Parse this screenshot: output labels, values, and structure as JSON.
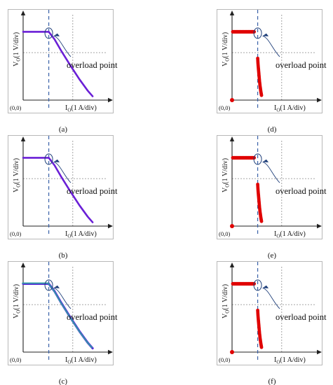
{
  "panels": [
    {
      "id": "a",
      "caption": "(a)",
      "col": 0,
      "row": 0,
      "style": "line",
      "colors": [
        "#6a1fd6"
      ],
      "ylabel_main": "V",
      "ylabel_sub": "O",
      "ylabel_unit": "(1 V/div)",
      "xlabel_main": "I",
      "xlabel_sub": "O",
      "xlabel_unit": "(1 A/div)",
      "origin": "(0,0)",
      "annotation": "overload point"
    },
    {
      "id": "b",
      "caption": "(b)",
      "col": 0,
      "row": 1,
      "style": "line",
      "colors": [
        "#6a1fd6"
      ],
      "ylabel_main": "V",
      "ylabel_sub": "O",
      "ylabel_unit": "(1 V/div)",
      "xlabel_main": "I",
      "xlabel_sub": "O",
      "xlabel_unit": "(1 A/div)",
      "origin": "(0,0)",
      "annotation": "overload point"
    },
    {
      "id": "c",
      "caption": "(c)",
      "col": 0,
      "row": 2,
      "style": "line",
      "colors": [
        "#2aa5a0",
        "#5a30d8"
      ],
      "ylabel_main": "V",
      "ylabel_sub": "O",
      "ylabel_unit": "(1 V/div)",
      "xlabel_main": "I",
      "xlabel_sub": "O",
      "xlabel_unit": "(1 A/div)",
      "origin": "(0,0)",
      "annotation": "overload point"
    },
    {
      "id": "d",
      "caption": "(d)",
      "col": 1,
      "row": 0,
      "style": "dots",
      "colors": [
        "#e00000"
      ],
      "ylabel_main": "V",
      "ylabel_sub": "O",
      "ylabel_unit": "(1 V/div)",
      "xlabel_main": "I",
      "xlabel_sub": "O",
      "xlabel_unit": "(1 A/div)",
      "origin": "(0,0)",
      "annotation": "overload point"
    },
    {
      "id": "e",
      "caption": "(e)",
      "col": 1,
      "row": 1,
      "style": "dots",
      "colors": [
        "#e00000"
      ],
      "ylabel_main": "V",
      "ylabel_sub": "O",
      "ylabel_unit": "(1 V/div)",
      "xlabel_main": "I",
      "xlabel_sub": "O",
      "xlabel_unit": "(1 A/div)",
      "origin": "(0,0)",
      "annotation": "overload point"
    },
    {
      "id": "f",
      "caption": "(f)",
      "col": 1,
      "row": 2,
      "style": "dots",
      "colors": [
        "#e00000"
      ],
      "ylabel_main": "V",
      "ylabel_sub": "O",
      "ylabel_unit": "(1 V/div)",
      "xlabel_main": "I",
      "xlabel_sub": "O",
      "xlabel_unit": "(1 A/div)",
      "origin": "(0,0)",
      "annotation": "overload point"
    }
  ],
  "chart_data": [
    {
      "type": "line",
      "panel": "a",
      "x": [
        0,
        1.55,
        1.9,
        2.3,
        2.8,
        3.4,
        3.9,
        4.2
      ],
      "y": [
        3.6,
        3.6,
        3.2,
        2.6,
        1.9,
        1.1,
        0.5,
        0.2
      ],
      "overload_x": 1.55,
      "grid": true
    },
    {
      "type": "line",
      "panel": "b",
      "x": [
        0,
        1.55,
        1.9,
        2.3,
        2.8,
        3.4,
        3.9,
        4.2
      ],
      "y": [
        3.6,
        3.6,
        3.2,
        2.6,
        1.9,
        1.1,
        0.5,
        0.2
      ],
      "overload_x": 1.55,
      "grid": true
    },
    {
      "type": "line",
      "panel": "c",
      "x": [
        0,
        1.55,
        1.9,
        2.3,
        2.8,
        3.4,
        3.9,
        4.2
      ],
      "y": [
        3.6,
        3.6,
        3.2,
        2.6,
        1.9,
        1.1,
        0.5,
        0.2
      ],
      "overload_x": 1.55,
      "grid": true
    },
    {
      "type": "scatter",
      "panel": "d",
      "x": [
        0,
        1.4,
        1.55,
        1.57,
        1.6,
        1.63,
        1.66,
        1.7,
        1.74,
        1.78
      ],
      "y": [
        3.6,
        3.6,
        2.2,
        1.9,
        1.6,
        1.3,
        1.0,
        0.7,
        0.45,
        0.25
      ],
      "origin_point": [
        0,
        0
      ],
      "overload_x": 1.55,
      "grid": true
    },
    {
      "type": "scatter",
      "panel": "e",
      "x": [
        0,
        1.4,
        1.55,
        1.57,
        1.6,
        1.63,
        1.66,
        1.7,
        1.74,
        1.78
      ],
      "y": [
        3.6,
        3.6,
        2.2,
        1.9,
        1.6,
        1.3,
        1.0,
        0.7,
        0.45,
        0.25
      ],
      "origin_point": [
        0,
        0
      ],
      "overload_x": 1.55,
      "grid": true
    },
    {
      "type": "scatter",
      "panel": "f",
      "x": [
        0,
        1.4,
        1.55,
        1.57,
        1.6,
        1.63,
        1.66,
        1.7,
        1.74,
        1.78
      ],
      "y": [
        3.6,
        3.6,
        2.2,
        1.9,
        1.6,
        1.3,
        1.0,
        0.7,
        0.45,
        0.25
      ],
      "origin_point": [
        0,
        0
      ],
      "overload_x": 1.55,
      "grid": true
    }
  ]
}
